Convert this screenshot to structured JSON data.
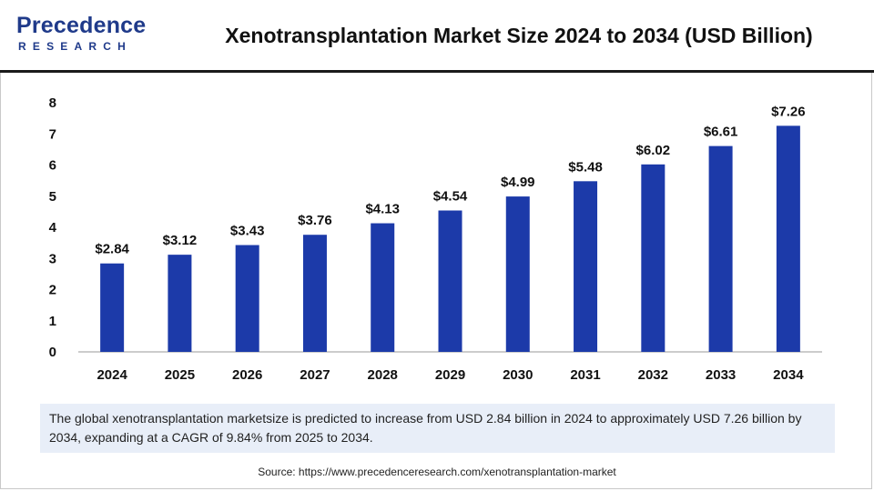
{
  "brand": {
    "logo_top": "Precedence",
    "logo_bottom": "RESEARCH",
    "color": "#1f3a8a"
  },
  "title": "Xenotransplantation Market Size 2024 to 2034 (USD Billion)",
  "note": "The global xenotransplantation marketsize is predicted to increase from USD 2.84 billion in 2024 to approximately USD 7.26 billion by 2034, expanding at a CAGR of 9.84% from 2025 to 2034.",
  "source": "Source: https://www.precedenceresearch.com/xenotransplantation-market",
  "chart_data": {
    "type": "bar",
    "title": "Xenotransplantation Market Size 2024 to 2034 (USD Billion)",
    "xlabel": "",
    "ylabel": "",
    "categories": [
      "2024",
      "2025",
      "2026",
      "2027",
      "2028",
      "2029",
      "2030",
      "2031",
      "2032",
      "2033",
      "2034"
    ],
    "values": [
      2.84,
      3.12,
      3.43,
      3.76,
      4.13,
      4.54,
      4.99,
      5.48,
      6.02,
      6.61,
      7.26
    ],
    "data_labels": [
      "$2.84",
      "$3.12",
      "$3.43",
      "$3.76",
      "$4.13",
      "$4.54",
      "$4.99",
      "$5.48",
      "$6.02",
      "$6.61",
      "$7.26"
    ],
    "ylim": [
      0,
      8
    ],
    "yticks": [
      "0",
      "1",
      "2",
      "3",
      "4",
      "5",
      "6",
      "7",
      "8"
    ],
    "grid": false,
    "bar_color": "#1c3aa9"
  }
}
